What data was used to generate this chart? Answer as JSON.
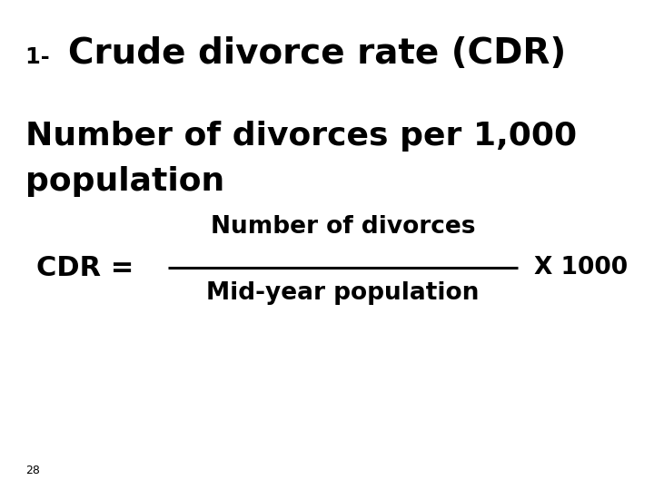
{
  "background_color": "#ffffff",
  "title_prefix": "1- ",
  "title_main": "Crude divorce rate (CDR)",
  "subtitle_line1": "Number of divorces per 1,000",
  "subtitle_line2": "population",
  "cdr_label": "CDR =",
  "numerator": "Number of divorces",
  "denominator": "Mid-year population",
  "multiplier": "X 1000",
  "page_number": "28",
  "title_fontsize": 28,
  "subtitle_fontsize": 26,
  "formula_fontsize": 22,
  "formula_sub_fontsize": 19,
  "small_fontsize": 9,
  "text_color": "#000000"
}
